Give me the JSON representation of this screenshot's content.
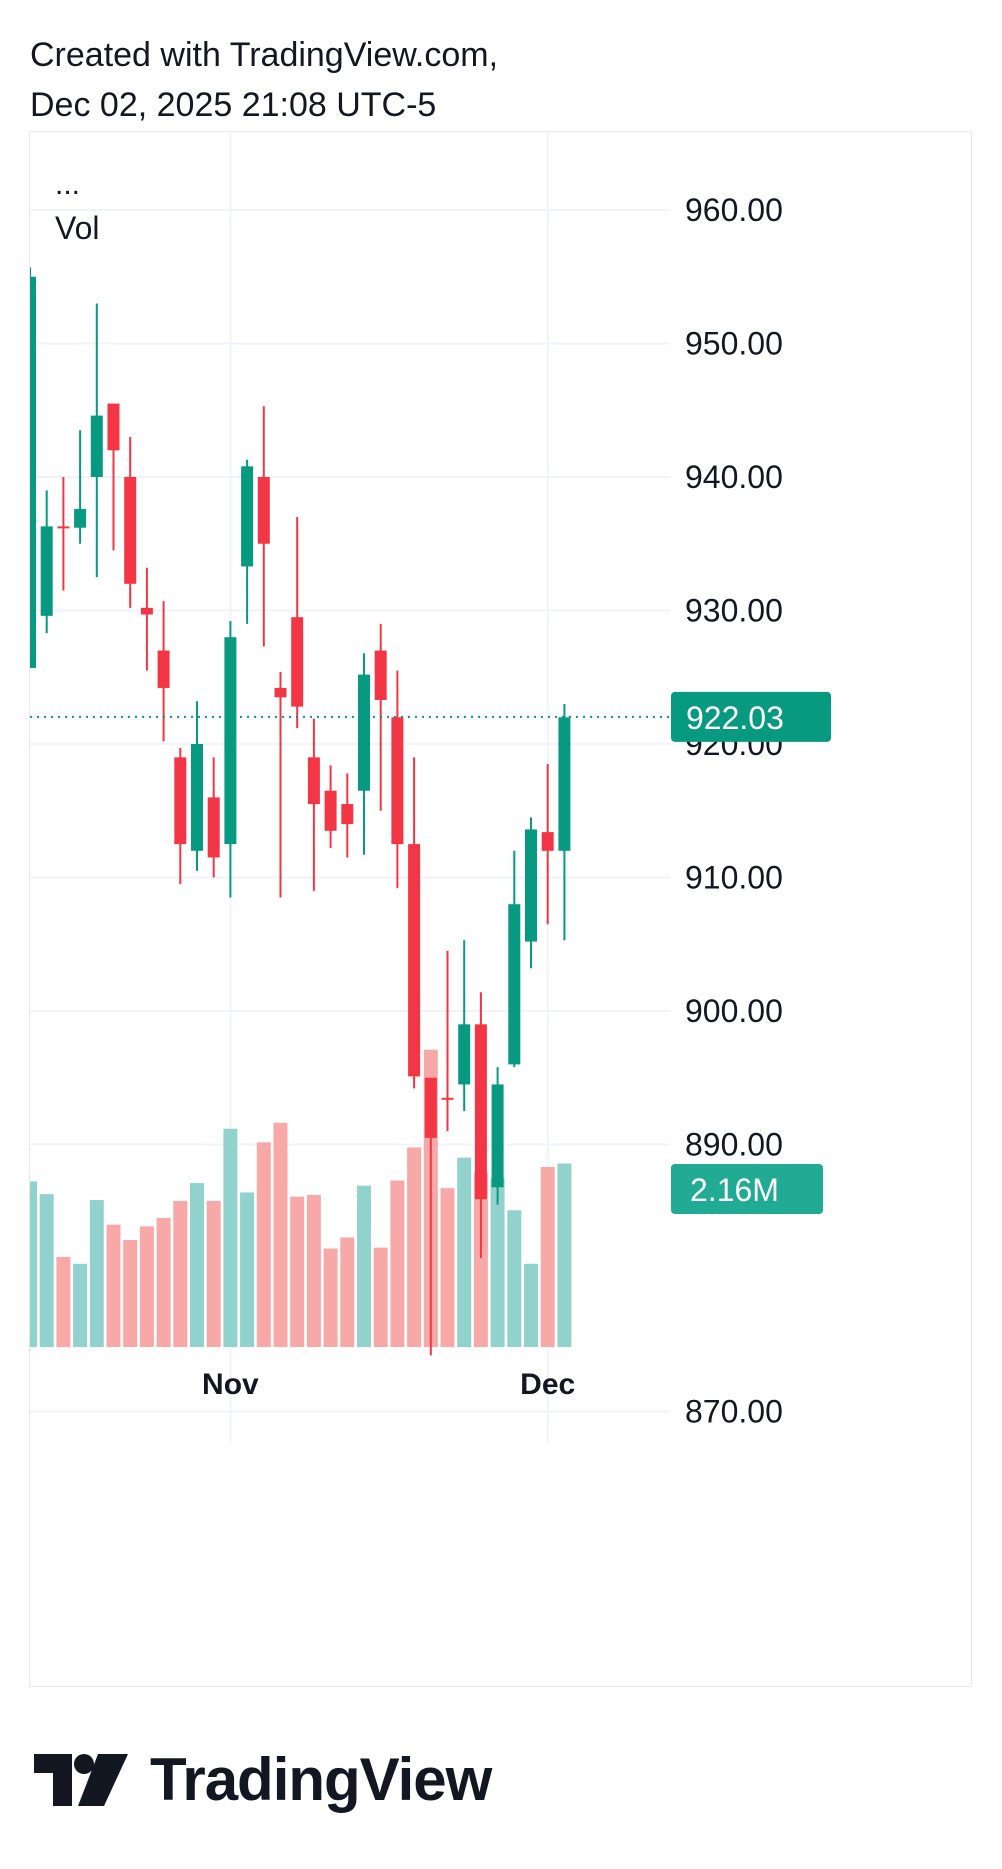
{
  "header": {
    "line1": "Created with TradingView.com,",
    "line2": "Dec 02, 2025 21:08 UTC-5"
  },
  "legend": {
    "ellipsis": "...",
    "vol_label": "Vol"
  },
  "footer": {
    "logo_text": "TradingView"
  },
  "colors": {
    "up": "#089981",
    "down": "#f23645",
    "up_vol": "#92d2cc",
    "down_vol": "#f7a9a7",
    "grid": "#f0f3fa",
    "text": "#131722",
    "price_tag": "#089981",
    "vol_tag": "#22ab94"
  },
  "chart_data": {
    "type": "candlestick",
    "price_axis": {
      "ticks": [
        "960.00",
        "950.00",
        "940.00",
        "930.00",
        "920.00",
        "910.00",
        "900.00",
        "890.00",
        "870.00"
      ],
      "tick_values": [
        960,
        950,
        940,
        930,
        920,
        910,
        900,
        890,
        870
      ],
      "range": [
        864,
        968
      ]
    },
    "time_axis": {
      "labels": [
        "Nov",
        "Dec"
      ],
      "label_bar_index": [
        12,
        31
      ]
    },
    "last_price": {
      "value": 922.03,
      "label": "922.03"
    },
    "last_volume": {
      "value": 2.16,
      "label": "2.16M"
    },
    "volume_scale_max_m": 3.65,
    "candles": [
      {
        "o": 925.7,
        "h": 955.7,
        "l": 925.7,
        "c": 955.0,
        "v": 1.95
      },
      {
        "o": 929.6,
        "h": 939.0,
        "l": 928.3,
        "c": 936.3,
        "v": 1.8
      },
      {
        "o": 936.3,
        "h": 940.0,
        "l": 931.5,
        "c": 936.2,
        "v": 1.06
      },
      {
        "o": 936.2,
        "h": 943.5,
        "l": 935.0,
        "c": 937.6,
        "v": 0.98
      },
      {
        "o": 940.0,
        "h": 953.0,
        "l": 932.5,
        "c": 944.6,
        "v": 1.73
      },
      {
        "o": 945.5,
        "h": 945.5,
        "l": 934.5,
        "c": 942.0,
        "v": 1.44
      },
      {
        "o": 940.0,
        "h": 943.0,
        "l": 930.2,
        "c": 932.0,
        "v": 1.26
      },
      {
        "o": 930.2,
        "h": 933.2,
        "l": 925.5,
        "c": 929.7,
        "v": 1.42
      },
      {
        "o": 927.0,
        "h": 930.7,
        "l": 920.2,
        "c": 924.2,
        "v": 1.52
      },
      {
        "o": 919.0,
        "h": 919.7,
        "l": 909.5,
        "c": 912.5,
        "v": 1.72
      },
      {
        "o": 912.0,
        "h": 923.2,
        "l": 910.5,
        "c": 920.0,
        "v": 1.93
      },
      {
        "o": 916.0,
        "h": 919.0,
        "l": 910.0,
        "c": 911.5,
        "v": 1.72
      },
      {
        "o": 912.5,
        "h": 929.2,
        "l": 908.5,
        "c": 928.0,
        "v": 2.57
      },
      {
        "o": 933.3,
        "h": 941.3,
        "l": 929.0,
        "c": 940.8,
        "v": 1.82
      },
      {
        "o": 940.0,
        "h": 945.3,
        "l": 927.3,
        "c": 935.0,
        "v": 2.41
      },
      {
        "o": 924.2,
        "h": 925.4,
        "l": 908.5,
        "c": 923.5,
        "v": 2.64
      },
      {
        "o": 929.5,
        "h": 937.0,
        "l": 921.2,
        "c": 922.8,
        "v": 1.77
      },
      {
        "o": 919.0,
        "h": 921.9,
        "l": 909.0,
        "c": 915.5,
        "v": 1.79
      },
      {
        "o": 916.5,
        "h": 918.4,
        "l": 912.2,
        "c": 913.5,
        "v": 1.16
      },
      {
        "o": 915.5,
        "h": 917.8,
        "l": 911.5,
        "c": 914.0,
        "v": 1.29
      },
      {
        "o": 916.5,
        "h": 926.8,
        "l": 911.7,
        "c": 925.2,
        "v": 1.9
      },
      {
        "o": 927.0,
        "h": 929.0,
        "l": 915.0,
        "c": 923.3,
        "v": 1.17
      },
      {
        "o": 922.0,
        "h": 925.5,
        "l": 909.2,
        "c": 912.5,
        "v": 1.96
      },
      {
        "o": 912.5,
        "h": 919.0,
        "l": 894.2,
        "c": 895.1,
        "v": 2.35
      },
      {
        "o": 895.0,
        "h": 895.0,
        "l": 874.2,
        "c": 890.5,
        "v": 3.5
      },
      {
        "o": 893.5,
        "h": 904.5,
        "l": 891.0,
        "c": 893.4,
        "v": 1.87
      },
      {
        "o": 894.5,
        "h": 905.3,
        "l": 892.5,
        "c": 899.0,
        "v": 2.23
      },
      {
        "o": 899.0,
        "h": 901.4,
        "l": 881.5,
        "c": 885.9,
        "v": 2.05
      },
      {
        "o": 886.8,
        "h": 895.8,
        "l": 885.5,
        "c": 894.5,
        "v": 1.99
      },
      {
        "o": 896.0,
        "h": 912.0,
        "l": 895.8,
        "c": 908.0,
        "v": 1.61
      },
      {
        "o": 905.2,
        "h": 914.5,
        "l": 903.2,
        "c": 913.6,
        "v": 0.98
      },
      {
        "o": 913.4,
        "h": 918.5,
        "l": 906.5,
        "c": 912.0,
        "v": 2.12
      },
      {
        "o": 912.0,
        "h": 923.0,
        "l": 905.3,
        "c": 922.0,
        "v": 2.16
      }
    ]
  }
}
